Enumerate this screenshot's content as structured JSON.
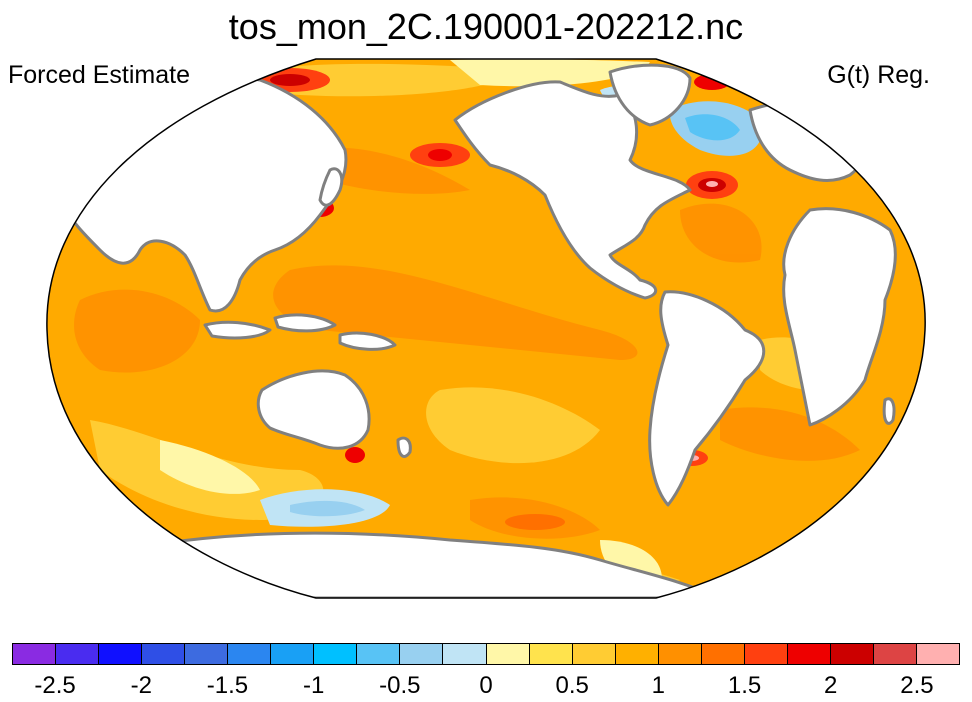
{
  "header": {
    "title": "tos_mon_2C.190001-202212.nc",
    "left_label": "Forced Estimate",
    "right_label": "G(t) Reg."
  },
  "map": {
    "projection": "robinson",
    "variable": "sea surface temperature trend",
    "ocean_base_color": "#ffaa00",
    "land_color": "#ffffff",
    "coast_color": "#808080"
  },
  "colorbar": {
    "colors": [
      "#8a2be2",
      "#4a2cf0",
      "#1010ff",
      "#2f4fe6",
      "#3d6be0",
      "#2b86f0",
      "#19a0f5",
      "#00c0ff",
      "#58c3f5",
      "#98d0f0",
      "#c0e4f5",
      "#fff7a8",
      "#ffe34d",
      "#ffcc33",
      "#ffb000",
      "#ff9000",
      "#ff7000",
      "#ff4010",
      "#ee0000",
      "#cc0000",
      "#dd4444",
      "#ffb0b0"
    ],
    "tick_labels": [
      "-2.5",
      "-2",
      "-1.5",
      "-1",
      "-0.5",
      "0",
      "0.5",
      "1",
      "1.5",
      "2",
      "2.5"
    ]
  }
}
